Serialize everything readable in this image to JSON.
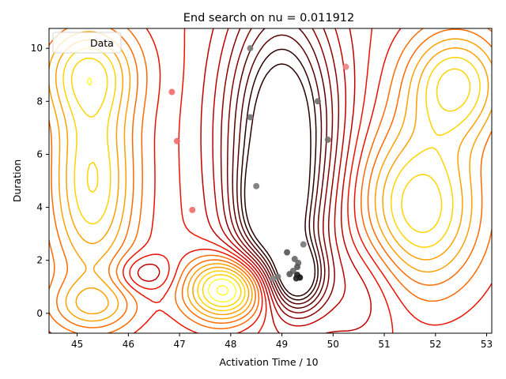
{
  "chart_data": {
    "type": "scatter",
    "title": "End search on nu =  0.011912",
    "xlabel": "Activation Time / 10",
    "ylabel": "Duration",
    "xlim": [
      44.45,
      53.1
    ],
    "ylim": [
      -0.75,
      10.75
    ],
    "xticks": [
      "45",
      "46",
      "47",
      "48",
      "49",
      "50",
      "51",
      "52",
      "53"
    ],
    "yticks": [
      "0",
      "2",
      "4",
      "6",
      "8",
      "10"
    ],
    "legend": {
      "label": "Data",
      "placement": "top-left"
    },
    "grid": false,
    "contour_colors": [
      "#ffff33",
      "#ffd400",
      "#ffa000",
      "#ff6a00",
      "#ee1100",
      "#c00000",
      "#8a0000",
      "#5a0000",
      "#2a0000"
    ],
    "series": [
      {
        "points": [
          {
            "x": 48.38,
            "y": 10.0,
            "c": "#7a7a7a"
          },
          {
            "x": 48.38,
            "y": 7.4,
            "c": "#707070"
          },
          {
            "x": 48.5,
            "y": 4.8,
            "c": "#777777"
          },
          {
            "x": 49.7,
            "y": 8.0,
            "c": "#6e6e6e"
          },
          {
            "x": 49.9,
            "y": 6.55,
            "c": "#707070"
          },
          {
            "x": 46.85,
            "y": 8.35,
            "c": "#ef6a6a"
          },
          {
            "x": 46.95,
            "y": 6.5,
            "c": "#ef6a6a"
          },
          {
            "x": 47.25,
            "y": 3.9,
            "c": "#ef6a6a"
          },
          {
            "x": 50.25,
            "y": 9.3,
            "c": "#f08080"
          },
          {
            "x": 49.42,
            "y": 2.6,
            "c": "#777777"
          },
          {
            "x": 49.1,
            "y": 2.3,
            "c": "#555555"
          },
          {
            "x": 49.25,
            "y": 2.05,
            "c": "#666666"
          },
          {
            "x": 49.32,
            "y": 1.9,
            "c": "#666666"
          },
          {
            "x": 49.3,
            "y": 1.75,
            "c": "#555555"
          },
          {
            "x": 49.22,
            "y": 1.6,
            "c": "#666666"
          },
          {
            "x": 49.15,
            "y": 1.48,
            "c": "#555555"
          },
          {
            "x": 49.3,
            "y": 1.45,
            "c": "#222222"
          },
          {
            "x": 49.35,
            "y": 1.35,
            "c": "#111111"
          },
          {
            "x": 49.28,
            "y": 1.32,
            "c": "#222222"
          },
          {
            "x": 48.92,
            "y": 1.38,
            "c": "#777777"
          },
          {
            "x": 48.82,
            "y": 1.3,
            "c": "#888888"
          }
        ]
      }
    ]
  }
}
